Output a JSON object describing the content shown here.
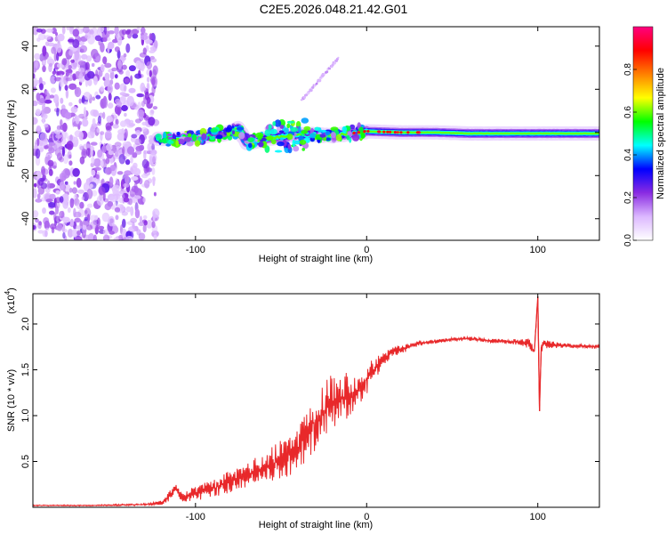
{
  "figure": {
    "title": "C2E5.2026.048.21.42.G01"
  },
  "chart_data": [
    {
      "type": "heatmap",
      "name": "spectrogram",
      "xlabel": "Height of straight line (km)",
      "ylabel": "Frequency (Hz)",
      "xlim": [
        -195,
        136
      ],
      "ylim": [
        -50,
        49
      ],
      "x_ticks": [
        {
          "value": -100,
          "label": "-100"
        },
        {
          "value": 0,
          "label": "0"
        },
        {
          "value": 100,
          "label": "100"
        }
      ],
      "y_ticks": [
        {
          "value": 40,
          "label": "40"
        },
        {
          "value": 20,
          "label": "20"
        },
        {
          "value": 0,
          "label": "0"
        },
        {
          "value": -20,
          "label": "-20"
        },
        {
          "value": -40,
          "label": "-40"
        }
      ],
      "noise_region_x": [
        -195,
        -123
      ],
      "signal_track": {
        "x": [
          -122,
          -110,
          -95,
          -80,
          -75,
          -70,
          -60,
          -50,
          -40,
          -30,
          -20,
          -10,
          0,
          20,
          40,
          60,
          80,
          100,
          120,
          136
        ],
        "freq": [
          -3,
          -3,
          -2,
          0,
          2,
          -5,
          -3,
          -2,
          -1,
          -1,
          -1.5,
          -0.5,
          0.5,
          0,
          0,
          -0.5,
          -0.5,
          -0.5,
          -0.5,
          -0.5
        ]
      },
      "colorbar": {
        "label": "Normalized spectral amplitude",
        "range": [
          0,
          1
        ],
        "ticks": [
          {
            "value": 0.0,
            "label": "0.0"
          },
          {
            "value": 0.2,
            "label": "0.2"
          },
          {
            "value": 0.4,
            "label": "0.4"
          },
          {
            "value": 0.6,
            "label": "0.6"
          },
          {
            "value": 0.8,
            "label": "0.8"
          }
        ],
        "colormap": [
          "#ffffff",
          "#dcb8ff",
          "#8a2be2",
          "#0000ff",
          "#00ffff",
          "#00ff00",
          "#ffff00",
          "#ff8000",
          "#ff0000",
          "#ff0080"
        ]
      }
    },
    {
      "type": "line",
      "name": "snr",
      "xlabel": "Height of straight line (km)",
      "ylabel": "SNR (10 * v/v)",
      "y_multiplier_label": "(x10",
      "y_multiplier_exp": "4",
      "xlim": [
        -195,
        136
      ],
      "ylim": [
        0,
        2.33
      ],
      "x_ticks": [
        {
          "value": -100,
          "label": "-100"
        },
        {
          "value": 0,
          "label": "0"
        },
        {
          "value": 100,
          "label": "100"
        }
      ],
      "y_ticks": [
        {
          "value": 0.5,
          "label": "0.5"
        },
        {
          "value": 1.0,
          "label": "1.0"
        },
        {
          "value": 1.5,
          "label": "1.5"
        },
        {
          "value": 2.0,
          "label": "2.0"
        }
      ],
      "series": [
        {
          "name": "SNR",
          "color": "#e8282a",
          "x": [
            -195,
            -160,
            -130,
            -120,
            -115,
            -112,
            -108,
            -100,
            -90,
            -80,
            -70,
            -60,
            -50,
            -40,
            -35,
            -30,
            -25,
            -20,
            -15,
            -10,
            -5,
            0,
            5,
            10,
            15,
            20,
            25,
            30,
            40,
            50,
            60,
            70,
            80,
            90,
            95,
            98,
            100,
            101,
            102,
            104,
            110,
            120,
            136
          ],
          "y": [
            0.02,
            0.02,
            0.03,
            0.05,
            0.12,
            0.22,
            0.12,
            0.15,
            0.2,
            0.28,
            0.35,
            0.42,
            0.52,
            0.65,
            0.8,
            0.95,
            1.05,
            1.15,
            1.2,
            1.22,
            1.28,
            1.4,
            1.52,
            1.62,
            1.7,
            1.72,
            1.75,
            1.79,
            1.81,
            1.83,
            1.84,
            1.82,
            1.81,
            1.8,
            1.78,
            1.7,
            2.3,
            1.05,
            1.75,
            1.78,
            1.77,
            1.76,
            1.75
          ],
          "noise": [
            0.005,
            0.005,
            0.01,
            0.02,
            0.05,
            0.05,
            0.05,
            0.07,
            0.08,
            0.1,
            0.12,
            0.14,
            0.18,
            0.22,
            0.26,
            0.28,
            0.28,
            0.28,
            0.25,
            0.22,
            0.18,
            0.14,
            0.1,
            0.07,
            0.05,
            0.04,
            0.03,
            0.025,
            0.02,
            0.02,
            0.02,
            0.02,
            0.02,
            0.03,
            0.05,
            0.05,
            0.02,
            0.02,
            0.05,
            0.04,
            0.03,
            0.02,
            0.02
          ]
        }
      ]
    }
  ]
}
